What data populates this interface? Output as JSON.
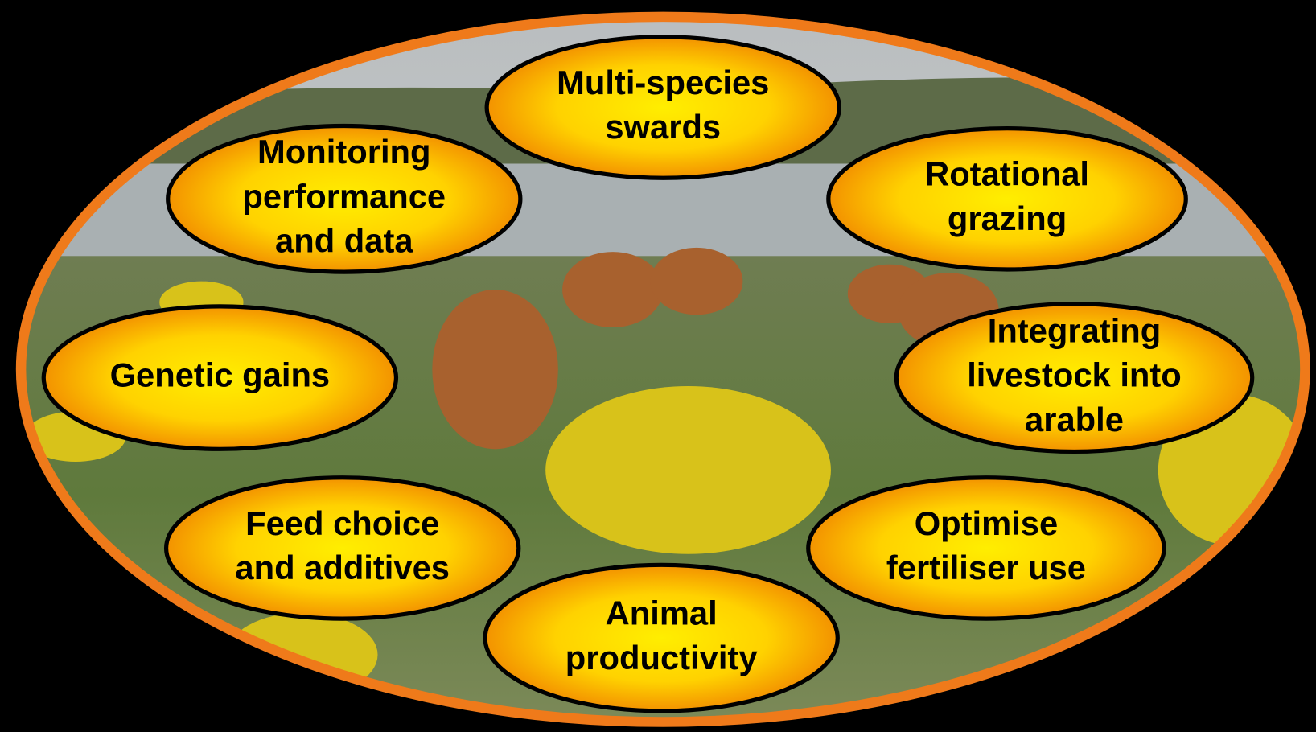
{
  "nodes": [
    {
      "lines": [
        "Multi-species",
        "swards"
      ]
    },
    {
      "lines": [
        "Monitoring",
        "performance",
        "and data"
      ]
    },
    {
      "lines": [
        "Rotational",
        "grazing"
      ]
    },
    {
      "lines": [
        "Genetic gains"
      ]
    },
    {
      "lines": [
        "Integrating",
        "livestock into",
        "arable"
      ]
    },
    {
      "lines": [
        "Feed choice",
        "and additives"
      ]
    },
    {
      "lines": [
        "Optimise",
        "fertiliser use"
      ]
    },
    {
      "lines": [
        "Animal",
        "productivity"
      ]
    }
  ]
}
